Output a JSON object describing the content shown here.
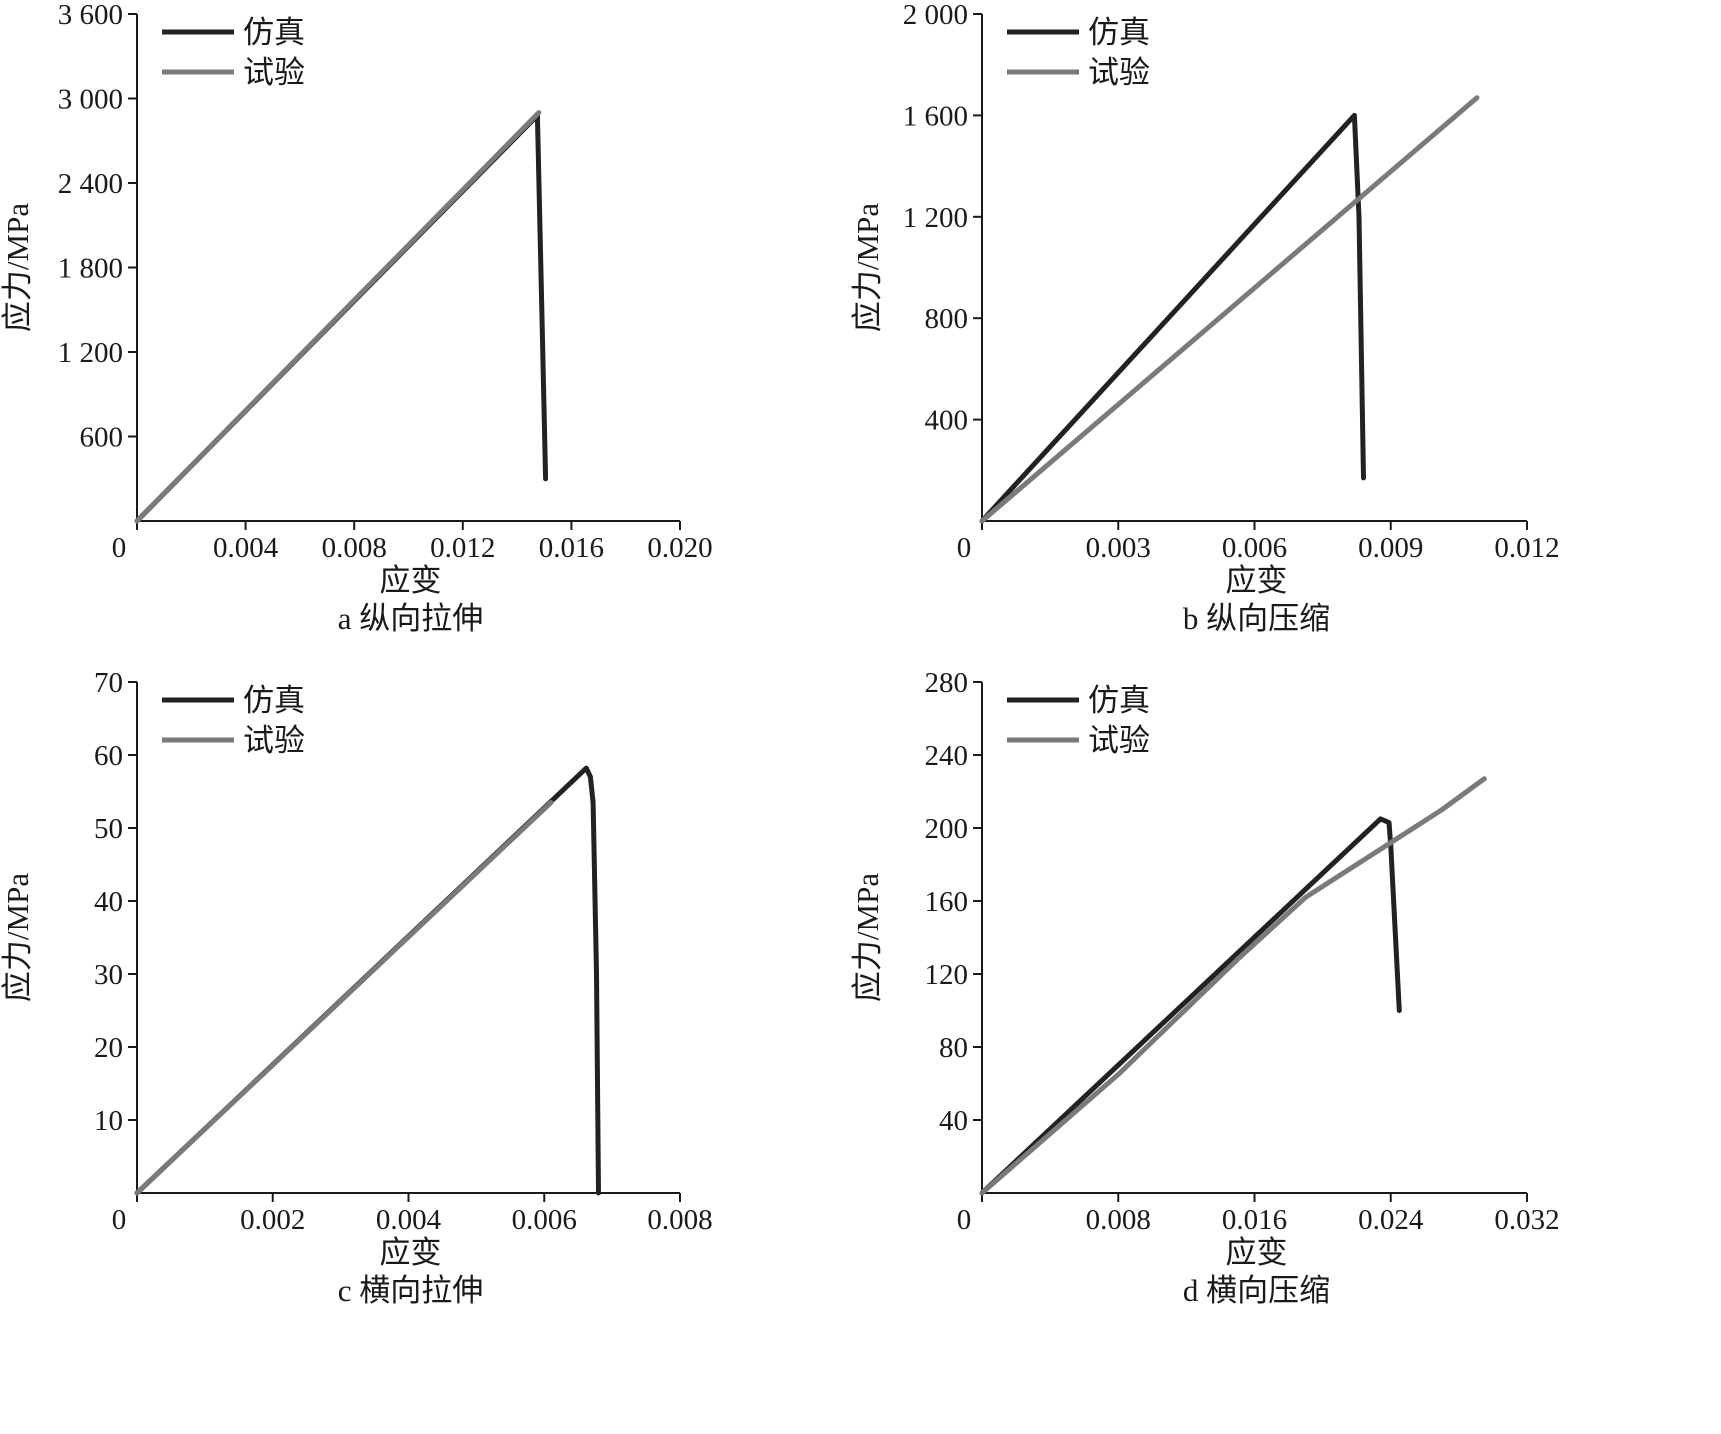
{
  "chart_data": [
    {
      "type": "line",
      "title": "",
      "caption": "a 纵向拉伸",
      "xlabel": "应变",
      "ylabel": "应力/MPa",
      "xlim": [
        0,
        0.02
      ],
      "ylim": [
        0,
        3600
      ],
      "x_ticks": [
        0,
        0.004,
        0.008,
        0.012,
        0.016,
        0.02
      ],
      "x_tick_labels": [
        "0",
        "0.004",
        "0.008",
        "0.012",
        "0.016",
        "0.020"
      ],
      "y_ticks": [
        600,
        1200,
        1800,
        2400,
        3000,
        3600
      ],
      "y_tick_labels": [
        "600",
        "1 200",
        "1 800",
        "2 400",
        "3 000",
        "3 600"
      ],
      "legend": "top-left",
      "series": [
        {
          "name": "仿真",
          "color": "#222222",
          "points": [
            [
              0,
              0
            ],
            [
              0.01475,
              2880
            ],
            [
              0.01475,
              2850
            ],
            [
              0.0149,
              1600
            ],
            [
              0.01505,
              300
            ]
          ]
        },
        {
          "name": "试验",
          "color": "#7a7a7a",
          "points": [
            [
              0,
              0
            ],
            [
              0.0148,
              2900
            ]
          ]
        }
      ]
    },
    {
      "type": "line",
      "title": "",
      "caption": "b 纵向压缩",
      "xlabel": "应变",
      "ylabel": "应力/MPa",
      "xlim": [
        0,
        0.012
      ],
      "ylim": [
        0,
        2000
      ],
      "x_ticks": [
        0,
        0.003,
        0.006,
        0.009,
        0.012
      ],
      "x_tick_labels": [
        "0",
        "0.003",
        "0.006",
        "0.009",
        "0.012"
      ],
      "y_ticks": [
        400,
        800,
        1200,
        1600,
        2000
      ],
      "y_tick_labels": [
        "400",
        "800",
        "1 200",
        "1 600",
        "2 000"
      ],
      "legend": "top-left",
      "series": [
        {
          "name": "仿真",
          "color": "#222222",
          "points": [
            [
              0,
              0
            ],
            [
              0.0082,
              1600
            ],
            [
              0.0083,
              1200
            ],
            [
              0.0084,
              170
            ]
          ]
        },
        {
          "name": "试验",
          "color": "#7a7a7a",
          "points": [
            [
              0,
              0
            ],
            [
              0.0109,
              1670
            ]
          ]
        }
      ]
    },
    {
      "type": "line",
      "title": "",
      "caption": "c 横向拉伸",
      "xlabel": "应变",
      "ylabel": "应力/MPa",
      "xlim": [
        0,
        0.008
      ],
      "ylim": [
        0,
        70
      ],
      "x_ticks": [
        0,
        0.002,
        0.004,
        0.006,
        0.008
      ],
      "x_tick_labels": [
        "0",
        "0.002",
        "0.004",
        "0.006",
        "0.008"
      ],
      "y_ticks": [
        10,
        20,
        30,
        40,
        50,
        60,
        70
      ],
      "y_tick_labels": [
        "10",
        "20",
        "30",
        "40",
        "50",
        "60",
        "70"
      ],
      "legend": "top-left",
      "series": [
        {
          "name": "仿真",
          "color": "#222222",
          "points": [
            [
              0,
              0
            ],
            [
              0.00662,
              58.2
            ],
            [
              0.00668,
              57
            ],
            [
              0.00672,
              53.5
            ],
            [
              0.00677,
              30
            ],
            [
              0.0068,
              0
            ]
          ]
        },
        {
          "name": "试验",
          "color": "#7a7a7a",
          "points": [
            [
              0,
              0
            ],
            [
              0.0061,
              53.5
            ]
          ]
        }
      ]
    },
    {
      "type": "line",
      "title": "",
      "caption": "d 横向压缩",
      "xlabel": "应变",
      "ylabel": "应力/MPa",
      "xlim": [
        0,
        0.032
      ],
      "ylim": [
        0,
        280
      ],
      "x_ticks": [
        0,
        0.008,
        0.016,
        0.024,
        0.032
      ],
      "x_tick_labels": [
        "0",
        "0.008",
        "0.016",
        "0.024",
        "0.032"
      ],
      "y_ticks": [
        40,
        80,
        120,
        160,
        200,
        240,
        280
      ],
      "y_tick_labels": [
        "40",
        "80",
        "120",
        "160",
        "200",
        "240",
        "280"
      ],
      "legend": "top-left",
      "series": [
        {
          "name": "仿真",
          "color": "#222222",
          "points": [
            [
              0,
              0
            ],
            [
              0.0234,
              205
            ],
            [
              0.0239,
              203
            ],
            [
              0.024,
              190
            ],
            [
              0.0245,
              100
            ]
          ]
        },
        {
          "name": "试验",
          "color": "#7a7a7a",
          "points": [
            [
              0,
              0
            ],
            [
              0.008,
              65
            ],
            [
              0.015,
              128
            ],
            [
              0.019,
              162
            ],
            [
              0.024,
              192
            ],
            [
              0.027,
              210
            ],
            [
              0.0295,
              227
            ]
          ]
        }
      ]
    }
  ]
}
